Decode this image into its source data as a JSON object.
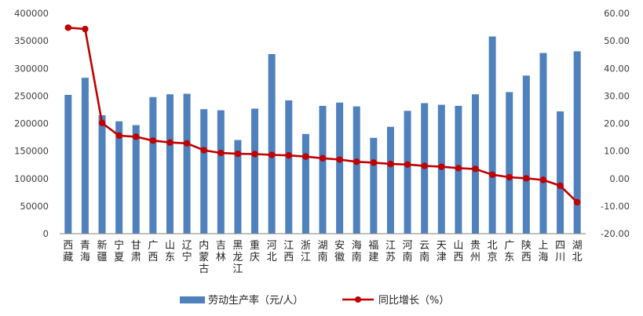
{
  "chart_data": {
    "type": "bar",
    "categories": [
      "西藏",
      "青海",
      "新疆",
      "宁夏",
      "甘肃",
      "广西",
      "山东",
      "辽宁",
      "内蒙古",
      "吉林",
      "黑龙江",
      "重庆",
      "河北",
      "江西",
      "浙江",
      "湖南",
      "安徽",
      "海南",
      "福建",
      "江苏",
      "河南",
      "云南",
      "天津",
      "山西",
      "贵州",
      "北京",
      "广东",
      "陕西",
      "上海",
      "四川",
      "湖北"
    ],
    "series": [
      {
        "name": "劳动生产率（元/人）",
        "type": "bar",
        "axis": "left",
        "color": "#4F81BD",
        "values": [
          252000,
          283000,
          215000,
          204000,
          197000,
          248000,
          253000,
          254000,
          226000,
          224000,
          170000,
          227000,
          326000,
          242000,
          181000,
          232000,
          238000,
          231000,
          174000,
          194000,
          223000,
          237000,
          234000,
          232000,
          253000,
          358000,
          257000,
          287000,
          328000,
          222000,
          331000
        ]
      },
      {
        "name": "同比增长（%）",
        "type": "line",
        "axis": "right",
        "color": "#C00000",
        "values": [
          54.8,
          54.3,
          20.2,
          15.6,
          15.2,
          13.8,
          13.1,
          12.8,
          10.3,
          9.3,
          9.0,
          8.9,
          8.6,
          8.4,
          8.0,
          7.4,
          6.9,
          6.1,
          5.8,
          5.3,
          5.1,
          4.6,
          4.3,
          3.8,
          3.5,
          1.4,
          0.5,
          0.1,
          -0.5,
          -2.6,
          -8.6
        ]
      }
    ],
    "y_left": {
      "min": 0,
      "max": 400000,
      "step": 50000,
      "ticks": [
        "0",
        "50000",
        "100000",
        "150000",
        "200000",
        "250000",
        "300000",
        "350000",
        "400000"
      ]
    },
    "y_right": {
      "min": -20,
      "max": 60,
      "step": 10,
      "ticks": [
        "-20.00",
        "-10.00",
        "0.00",
        "10.00",
        "20.00",
        "30.00",
        "40.00",
        "50.00",
        "60.00"
      ]
    },
    "grid": false,
    "legend_position": "bottom"
  }
}
